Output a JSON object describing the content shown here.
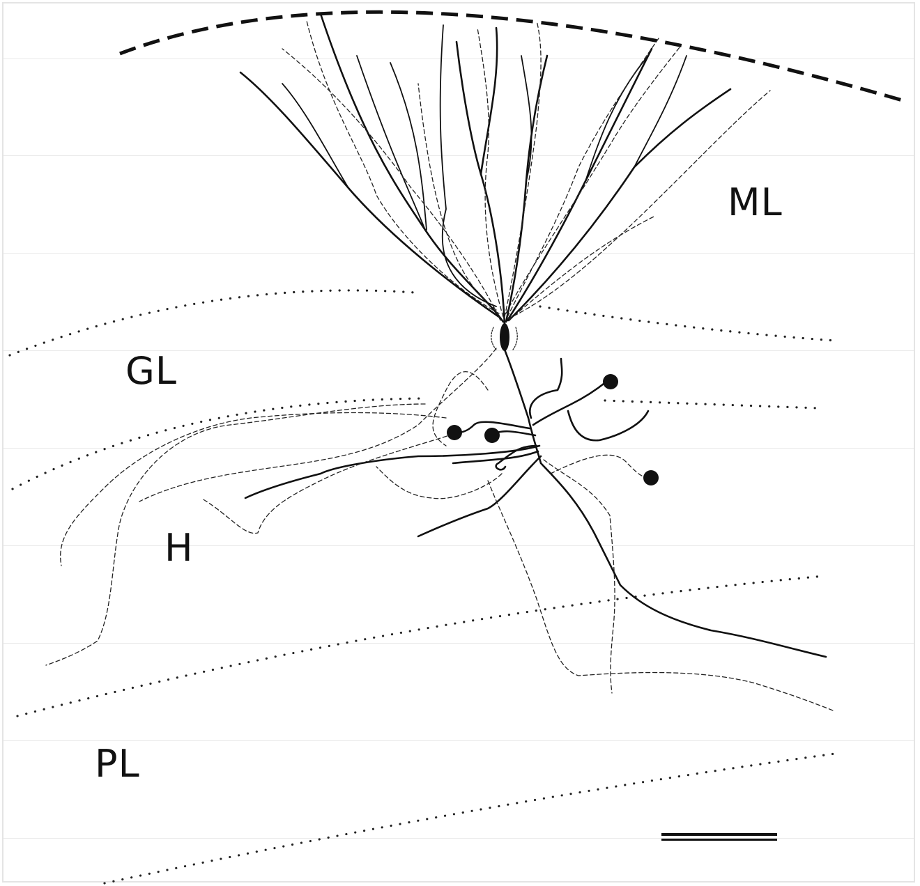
{
  "labels": {
    "ml": "ML",
    "gl": "GL",
    "h": "H",
    "pl": "PL"
  },
  "colors": {
    "background": "#ffffff",
    "ink": "#111111",
    "frame": "#e4e4e4"
  }
}
